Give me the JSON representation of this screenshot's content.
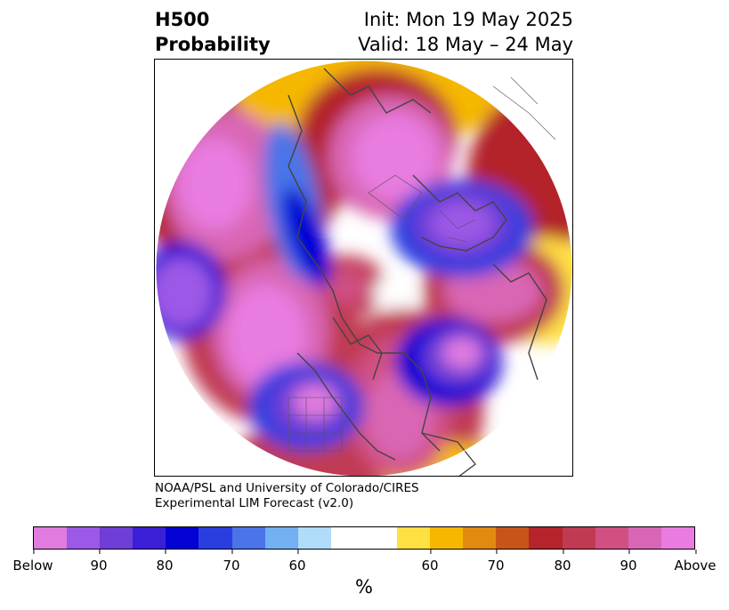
{
  "header": {
    "title_line1": "H500",
    "title_line2": "Probability",
    "init_text": "Init: Mon 19 May 2025",
    "valid_text": "Valid: 18 May – 24 May"
  },
  "credit": {
    "line1": "NOAA/PSL and University of Colorado/CIRES",
    "line2": "Experimental LIM Forecast (v2.0)"
  },
  "colorbar": {
    "colors": [
      "#e07ce0",
      "#9c58e6",
      "#6e3ed6",
      "#3a1fd6",
      "#0303d4",
      "#2a3ee0",
      "#4a74e8",
      "#72b0f2",
      "#b0dcfa",
      "#ffffff",
      "#ffffff",
      "#ffe042",
      "#f5b700",
      "#e08a10",
      "#c85418",
      "#b4242a",
      "#c03a52",
      "#d05082",
      "#d966b4",
      "#e87ce0"
    ],
    "tick_labels": [
      "Below",
      "90",
      "80",
      "70",
      "60",
      "60",
      "70",
      "80",
      "90",
      "Above"
    ],
    "unit_label": "%"
  },
  "map": {
    "projection": "north polar stereographic",
    "field": "500 hPa height anomaly probability"
  }
}
